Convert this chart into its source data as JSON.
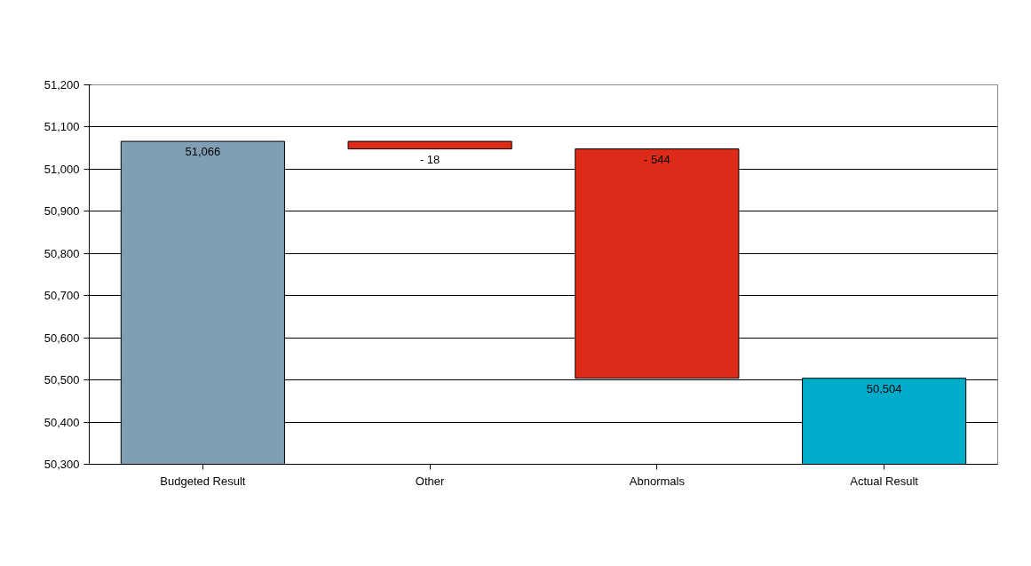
{
  "chart_data": {
    "type": "bar",
    "categories": [
      "Budgeted Result",
      "Other",
      "Abnormals",
      "Actual Result"
    ],
    "values": [
      51066,
      -18,
      -544,
      50504
    ],
    "base": [
      null,
      51066,
      51048,
      null
    ],
    "colors": [
      "#7f9fb4",
      "#dc2c19",
      "#dc2c19",
      "#00acc9"
    ],
    "value_labels": [
      "51,066",
      "- 18",
      "- 544",
      "50,504"
    ],
    "ylim": [
      50300,
      51200
    ],
    "yticks": [
      {
        "value": 50300,
        "label": "50,300"
      },
      {
        "value": 50400,
        "label": "50,400"
      },
      {
        "value": 50500,
        "label": "50,500"
      },
      {
        "value": 50600,
        "label": "50,600"
      },
      {
        "value": 50700,
        "label": "50,700"
      },
      {
        "value": 50800,
        "label": "50,800"
      },
      {
        "value": 50900,
        "label": "50,900"
      },
      {
        "value": 51000,
        "label": "51,000"
      },
      {
        "value": 51100,
        "label": "51,100"
      },
      {
        "value": 51200,
        "label": "51,200"
      }
    ],
    "grid": "y"
  }
}
